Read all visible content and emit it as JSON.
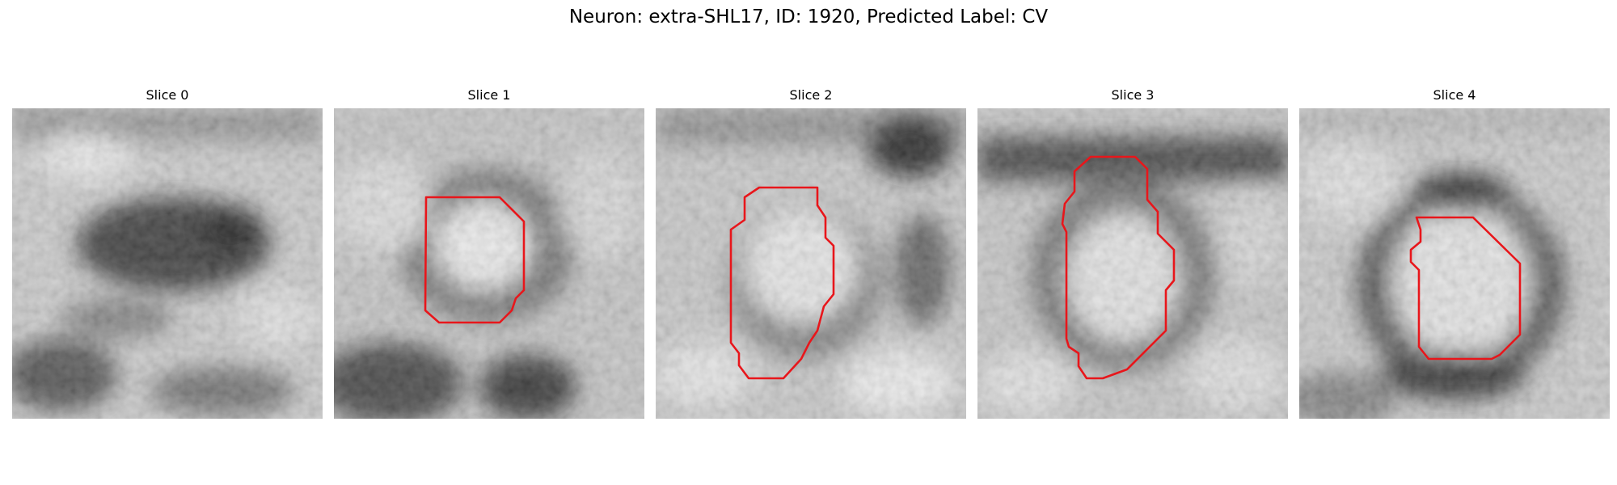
{
  "figure": {
    "title": "Neuron: extra-SHL17, ID: 1920, Predicted Label: CV"
  },
  "colors": {
    "contour": "#e8161b",
    "background": "#ffffff"
  },
  "panels": [
    {
      "title": "Slice 0",
      "has_contour": false
    },
    {
      "title": "Slice 1",
      "has_contour": true
    },
    {
      "title": "Slice 2",
      "has_contour": true
    },
    {
      "title": "Slice 3",
      "has_contour": true
    },
    {
      "title": "Slice 4",
      "has_contour": true
    }
  ]
}
